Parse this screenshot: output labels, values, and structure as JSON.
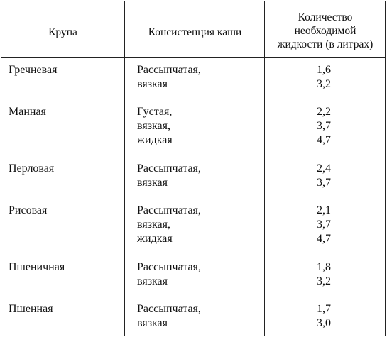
{
  "table": {
    "headers": {
      "grain": "Крупа",
      "consistency": "Консистенция каши",
      "liquid_line1": "Количество",
      "liquid_line2": "необходимой",
      "liquid_line3": "жидкости (в литрах)"
    },
    "rows": [
      {
        "grain": "Гречневая",
        "consistencies": [
          "Рассыпчатая,",
          "вязкая"
        ],
        "amounts": [
          "1,6",
          "3,2"
        ]
      },
      {
        "grain": "Манная",
        "consistencies": [
          "Густая,",
          "вязкая,",
          "жидкая"
        ],
        "amounts": [
          "2,2",
          "3,7",
          "4,7"
        ]
      },
      {
        "grain": "Перловая",
        "consistencies": [
          "Рассыпчатая,",
          "вязкая"
        ],
        "amounts": [
          "2,4",
          "3,7"
        ]
      },
      {
        "grain": "Рисовая",
        "consistencies": [
          "Рассыпчатая,",
          "вязкая,",
          "жидкая"
        ],
        "amounts": [
          "2,1",
          "3,7",
          "4,7"
        ]
      },
      {
        "grain": "Пшеничная",
        "consistencies": [
          "Рассыпчатая,",
          "вязкая"
        ],
        "amounts": [
          "1,8",
          "3,2"
        ]
      },
      {
        "grain": "Пшенная",
        "consistencies": [
          "Рассыпчатая,",
          "вязкая"
        ],
        "amounts": [
          "1,7",
          "3,0"
        ]
      }
    ]
  }
}
